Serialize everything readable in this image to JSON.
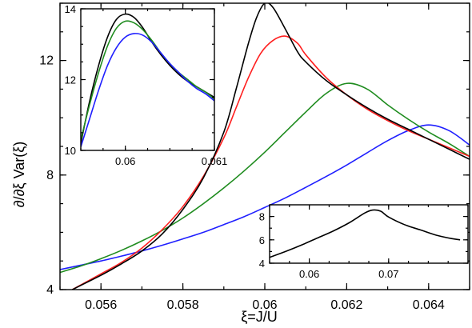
{
  "chart_data": [
    {
      "type": "line",
      "role": "main",
      "xlabel": "ξ=J/U",
      "ylabel": "∂/∂ξ Var(ξ)",
      "xlim": [
        0.055,
        0.065
      ],
      "ylim": [
        4,
        14
      ],
      "x_ticks": [
        0.056,
        0.058,
        0.06,
        0.062,
        0.064
      ],
      "x_tick_labels": [
        "0.056",
        "0.058",
        "0.06",
        "0.062",
        "0.064"
      ],
      "y_ticks": [
        4,
        8,
        12
      ],
      "y_tick_labels": [
        "4",
        "8",
        "12"
      ],
      "grid": false,
      "series": [
        {
          "color": "#1f1fff",
          "x": [
            0.055,
            0.0555,
            0.056,
            0.0565,
            0.057,
            0.0575,
            0.058,
            0.0585,
            0.059,
            0.0595,
            0.06,
            0.0605,
            0.061,
            0.0615,
            0.062,
            0.0625,
            0.063,
            0.0635,
            0.064,
            0.0645,
            0.065
          ],
          "y": [
            4.7,
            4.85,
            5.0,
            5.17,
            5.35,
            5.55,
            5.77,
            6.0,
            6.27,
            6.55,
            6.87,
            7.2,
            7.57,
            7.95,
            8.35,
            8.78,
            9.2,
            9.55,
            9.75,
            9.55,
            9.05
          ]
        },
        {
          "color": "#1f8c1f",
          "x": [
            0.055,
            0.0555,
            0.056,
            0.0565,
            0.057,
            0.0575,
            0.058,
            0.0585,
            0.059,
            0.0595,
            0.06,
            0.0605,
            0.061,
            0.0615,
            0.062,
            0.0625,
            0.063,
            0.0635,
            0.064,
            0.0645,
            0.065
          ],
          "y": [
            4.6,
            4.82,
            5.08,
            5.37,
            5.7,
            6.07,
            6.5,
            7.0,
            7.55,
            8.15,
            8.8,
            9.5,
            10.2,
            10.85,
            11.2,
            11.0,
            10.45,
            9.95,
            9.5,
            9.1,
            8.65
          ]
        },
        {
          "color": "#ff1f1f",
          "x": [
            0.0553,
            0.056,
            0.0565,
            0.057,
            0.0575,
            0.058,
            0.0585,
            0.059,
            0.0593,
            0.0596,
            0.0599,
            0.0602,
            0.0605,
            0.0608,
            0.061,
            0.0615,
            0.062,
            0.0625,
            0.063,
            0.0635,
            0.064,
            0.0645,
            0.065
          ],
          "y": [
            4.0,
            4.55,
            4.95,
            5.45,
            6.1,
            6.9,
            7.95,
            9.3,
            10.35,
            11.4,
            12.25,
            12.7,
            12.85,
            12.6,
            12.2,
            11.4,
            10.8,
            10.3,
            9.9,
            9.55,
            9.25,
            8.95,
            8.65
          ]
        },
        {
          "color": "#000000",
          "x": [
            0.0553,
            0.056,
            0.0565,
            0.057,
            0.0575,
            0.058,
            0.0585,
            0.059,
            0.0593,
            0.0596,
            0.0598,
            0.06,
            0.0602,
            0.0605,
            0.0608,
            0.061,
            0.0615,
            0.062,
            0.0625,
            0.063,
            0.0635,
            0.064,
            0.0645,
            0.065
          ],
          "y": [
            4.0,
            4.5,
            4.9,
            5.35,
            5.95,
            6.8,
            7.9,
            9.5,
            11.0,
            12.6,
            13.5,
            14.0,
            13.85,
            13.1,
            12.3,
            11.95,
            11.3,
            10.8,
            10.35,
            9.95,
            9.6,
            9.25,
            8.9,
            8.55
          ]
        }
      ]
    },
    {
      "type": "line",
      "role": "inset-top-left",
      "xlim": [
        0.0595,
        0.061
      ],
      "ylim": [
        10,
        14
      ],
      "x_ticks": [
        0.06,
        0.061
      ],
      "x_tick_labels": [
        "0.06",
        "0.061"
      ],
      "y_ticks": [
        10,
        12,
        14
      ],
      "y_tick_labels": [
        "10",
        "12",
        "14"
      ],
      "grid": false,
      "series": [
        {
          "color": "#000000",
          "x": [
            0.0595,
            0.0596,
            0.0597,
            0.0598,
            0.0599,
            0.06,
            0.0601,
            0.0602,
            0.0603,
            0.0604,
            0.0605,
            0.0606,
            0.0607,
            0.0608,
            0.0609,
            0.061
          ],
          "y": [
            10.2,
            11.4,
            12.4,
            13.2,
            13.7,
            13.85,
            13.75,
            13.45,
            13.05,
            12.7,
            12.4,
            12.15,
            11.95,
            11.8,
            11.65,
            11.5
          ]
        },
        {
          "color": "#1f8c1f",
          "x": [
            0.0595,
            0.0596,
            0.0597,
            0.0598,
            0.0599,
            0.06,
            0.0601,
            0.0602,
            0.0603,
            0.0604,
            0.0605,
            0.0606,
            0.0607,
            0.0608,
            0.0609,
            0.061
          ],
          "y": [
            10.3,
            11.3,
            12.2,
            12.95,
            13.45,
            13.65,
            13.6,
            13.4,
            13.1,
            12.75,
            12.45,
            12.2,
            12.0,
            11.8,
            11.65,
            11.45
          ]
        },
        {
          "color": "#1f1fff",
          "x": [
            0.0595,
            0.0596,
            0.0597,
            0.0598,
            0.0599,
            0.06,
            0.0601,
            0.0602,
            0.0603,
            0.0604,
            0.0605,
            0.0606,
            0.0607,
            0.0608,
            0.0609,
            0.061
          ],
          "y": [
            10.1,
            10.9,
            11.7,
            12.4,
            12.9,
            13.2,
            13.3,
            13.25,
            13.05,
            12.75,
            12.45,
            12.2,
            11.95,
            11.75,
            11.6,
            11.4
          ]
        }
      ]
    },
    {
      "type": "line",
      "role": "inset-bottom-right",
      "xlim": [
        0.055,
        0.08
      ],
      "ylim": [
        4,
        9
      ],
      "x_ticks": [
        0.06,
        0.07
      ],
      "x_tick_labels": [
        "0.06",
        "0.07"
      ],
      "y_ticks": [
        4,
        6,
        8
      ],
      "y_tick_labels": [
        "4",
        "6",
        "8"
      ],
      "grid": false,
      "series": [
        {
          "color": "#000000",
          "x": [
            0.055,
            0.057,
            0.059,
            0.061,
            0.063,
            0.065,
            0.067,
            0.068,
            0.069,
            0.07,
            0.072,
            0.074,
            0.076,
            0.078,
            0.079
          ],
          "y": [
            4.5,
            5.0,
            5.55,
            6.15,
            6.75,
            7.45,
            8.3,
            8.55,
            8.45,
            7.95,
            7.3,
            6.85,
            6.4,
            6.1,
            6.0
          ]
        }
      ]
    }
  ]
}
